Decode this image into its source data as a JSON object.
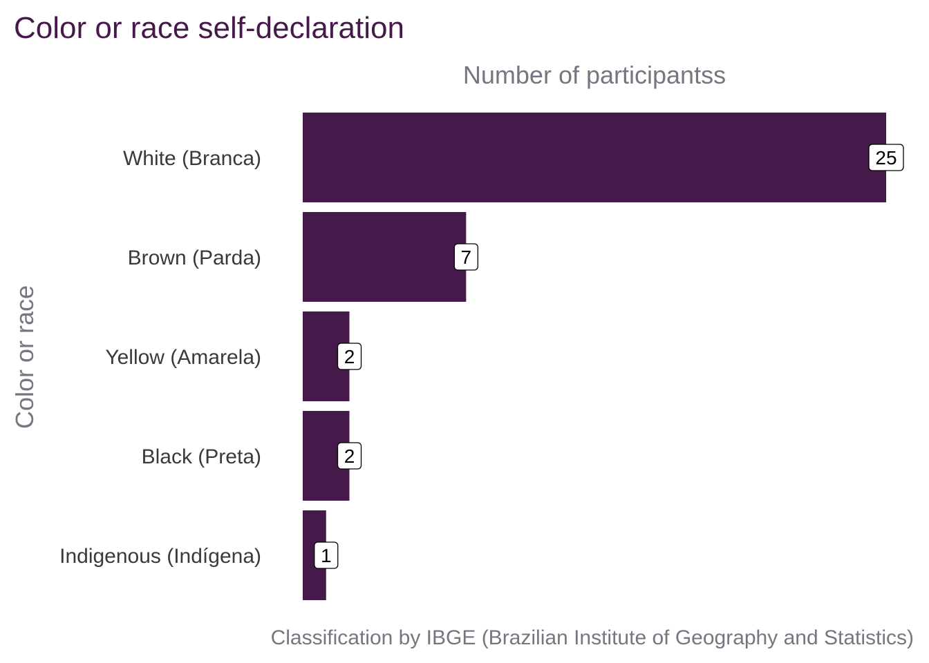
{
  "chart_data": {
    "type": "bar",
    "orientation": "horizontal",
    "title": "Color or race self-declaration",
    "xlabel": "Number of participantss",
    "ylabel": "Color or race",
    "caption": "Classification by IBGE (Brazilian Institute of Geography and Statistics)",
    "categories": [
      "White (Branca)",
      "Brown (Parda)",
      "Yellow (Amarela)",
      "Black (Preta)",
      "Indigenous (Indígena)"
    ],
    "values": [
      25,
      7,
      2,
      2,
      1
    ],
    "xlim": [
      0,
      25
    ],
    "grid": false,
    "legend": "none",
    "x_axis_position": "top",
    "data_labels": true,
    "bar_color": "#45194a"
  }
}
